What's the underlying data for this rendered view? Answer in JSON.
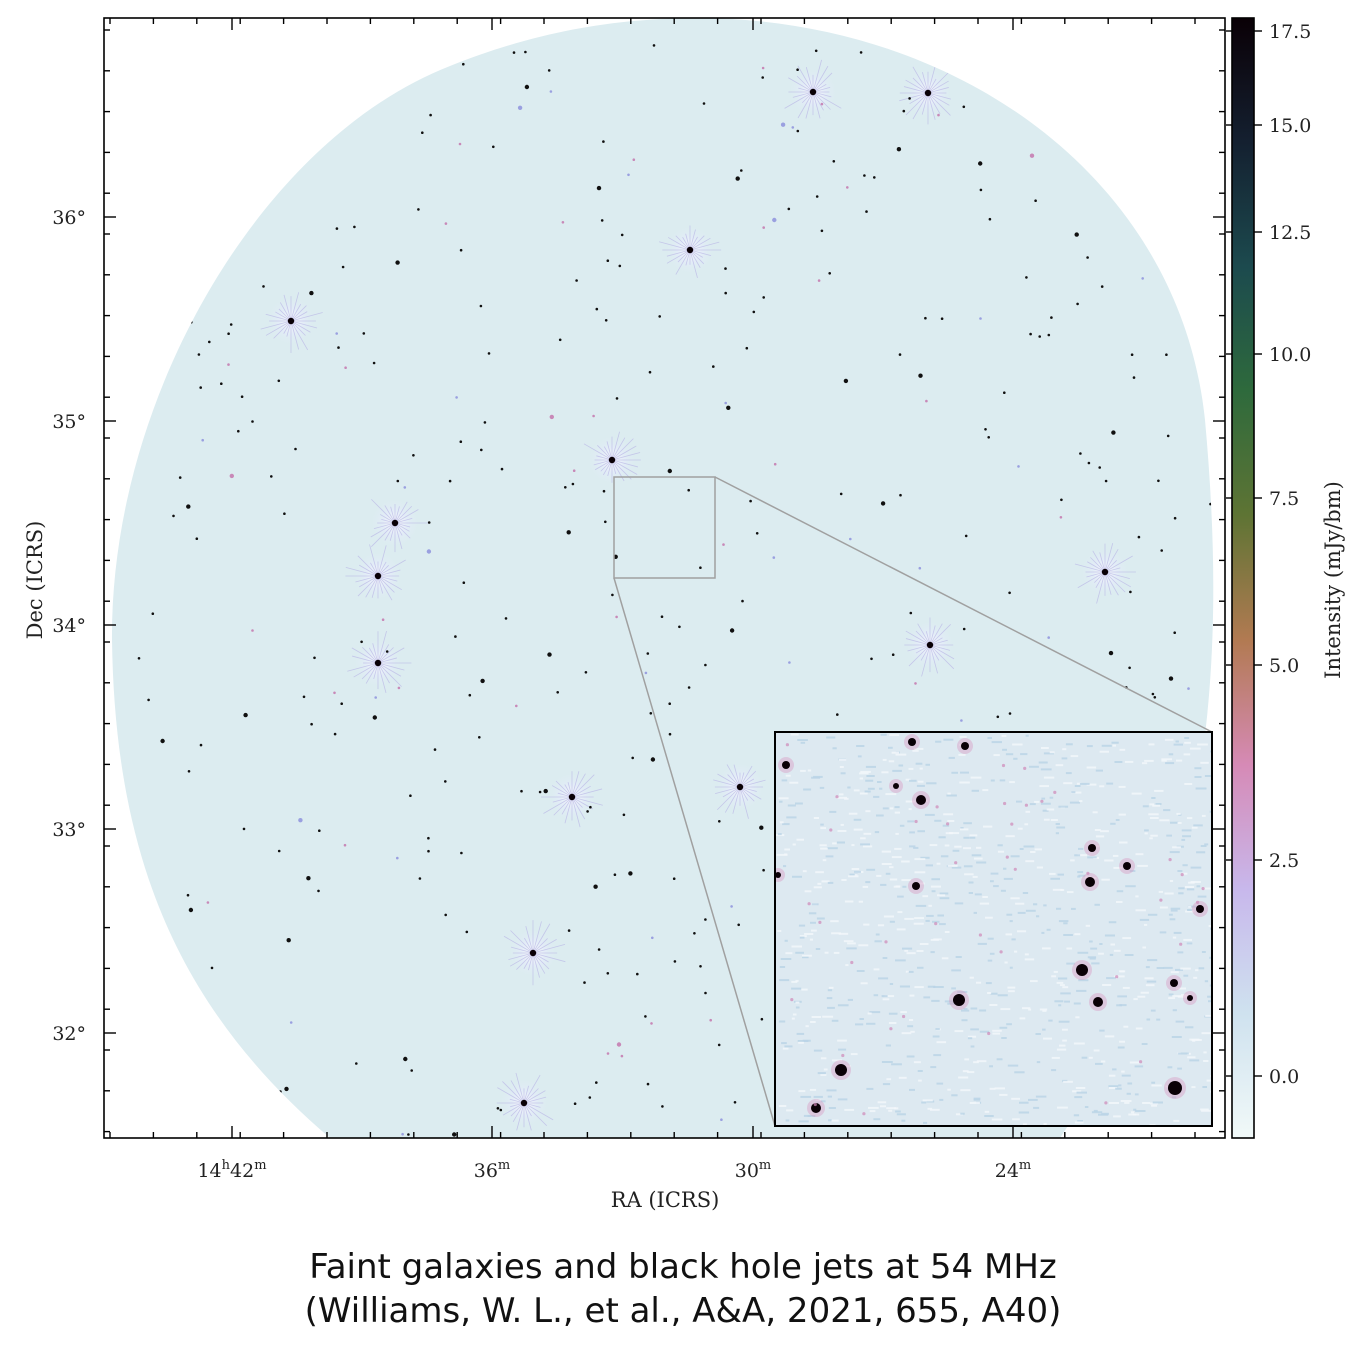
{
  "figure": {
    "x_axis": {
      "title": "RA (ICRS)",
      "ticks": [
        {
          "main": "14",
          "h": "h",
          "rest": "42",
          "m": "m"
        },
        {
          "main": "",
          "h": "",
          "rest": "36",
          "m": "m"
        },
        {
          "main": "",
          "h": "",
          "rest": "30",
          "m": "m"
        },
        {
          "main": "",
          "h": "",
          "rest": "24",
          "m": "m"
        }
      ]
    },
    "y_axis": {
      "title": "Dec (ICRS)",
      "ticks": [
        "36°",
        "35°",
        "34°",
        "33°",
        "32°"
      ]
    },
    "colorbar": {
      "title": "Intensity (mJy/bm)",
      "ticks": [
        "17.5",
        "15.0",
        "12.5",
        "10.0",
        "7.5",
        "5.0",
        "2.5",
        "0.0"
      ],
      "colors": [
        "#0a0006",
        "#142030",
        "#1c4a4e",
        "#2e6a3c",
        "#5e7434",
        "#b27a52",
        "#d68ab6",
        "#c8b8ec",
        "#cfe2ef",
        "#f1f9f8"
      ]
    },
    "background_color": "#dcecf0"
  },
  "caption": {
    "line1": "Faint galaxies and black hole jets at 54 MHz",
    "line2": "(Williams, W. L., et al., A&A, 2021, 655, A40)"
  }
}
